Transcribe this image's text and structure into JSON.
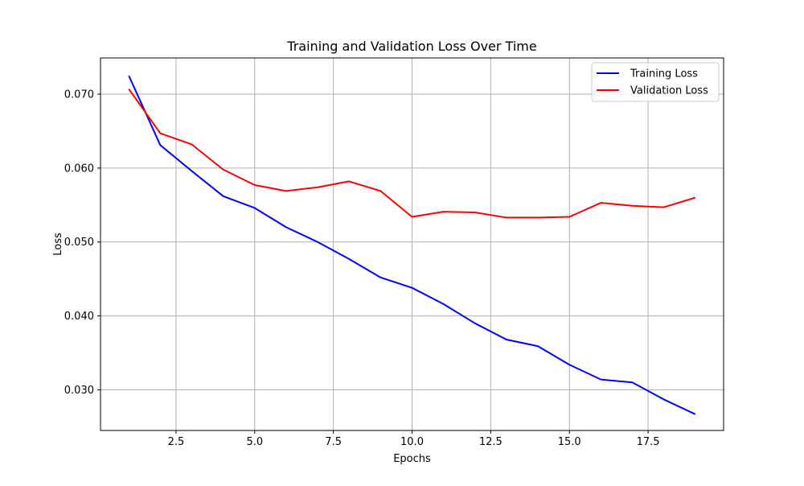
{
  "chart_data": {
    "type": "line",
    "title": "Training and Validation Loss Over Time",
    "xlabel": "Epochs",
    "ylabel": "Loss",
    "xlim": [
      0.1,
      19.9
    ],
    "ylim": [
      0.0245,
      0.0749
    ],
    "xticks": [
      2.5,
      5.0,
      7.5,
      10.0,
      12.5,
      15.0,
      17.5
    ],
    "xtick_labels": [
      "2.5",
      "5.0",
      "7.5",
      "10.0",
      "12.5",
      "15.0",
      "17.5"
    ],
    "yticks": [
      0.03,
      0.04,
      0.05,
      0.06,
      0.07
    ],
    "ytick_labels": [
      "0.030",
      "0.040",
      "0.050",
      "0.060",
      "0.070"
    ],
    "grid": true,
    "legend_position": "top-right",
    "x": [
      1,
      2,
      3,
      4,
      5,
      6,
      7,
      8,
      9,
      10,
      11,
      12,
      13,
      14,
      15,
      16,
      17,
      18,
      19
    ],
    "series": [
      {
        "name": "Training Loss",
        "color": "#0000ff",
        "values": [
          0.0725,
          0.0631,
          0.0596,
          0.0562,
          0.0546,
          0.052,
          0.05,
          0.0477,
          0.0452,
          0.0438,
          0.0416,
          0.039,
          0.0368,
          0.0359,
          0.0334,
          0.0314,
          0.031,
          0.0287,
          0.0267
        ]
      },
      {
        "name": "Validation Loss",
        "color": "#ff0000",
        "values": [
          0.0707,
          0.0647,
          0.0632,
          0.0598,
          0.0577,
          0.0569,
          0.0574,
          0.0582,
          0.0569,
          0.0534,
          0.0541,
          0.054,
          0.0533,
          0.0533,
          0.0534,
          0.0553,
          0.0549,
          0.0547,
          0.056
        ]
      }
    ]
  }
}
